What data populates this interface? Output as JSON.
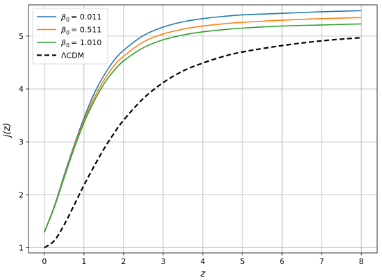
{
  "chart_data": {
    "type": "line",
    "xlabel": "z",
    "ylabel": "j(z)",
    "xlim": [
      -0.4,
      8.4
    ],
    "ylim": [
      0.9,
      5.59
    ],
    "xticks": [
      "0",
      "1",
      "2",
      "3",
      "4",
      "5",
      "6",
      "7",
      "8"
    ],
    "yticks": [
      "1",
      "2",
      "3",
      "4",
      "5"
    ],
    "grid": true,
    "legend_position": "top-left",
    "series": [
      {
        "name": "β0 = 0.011",
        "legend_symbol": "β",
        "legend_sub": "0",
        "legend_value": "= 0.011",
        "color": "#1f77b4",
        "dash": "solid",
        "x": [
          0,
          0.25,
          0.5,
          0.75,
          1.0,
          1.25,
          1.5,
          1.75,
          2.0,
          2.5,
          3.0,
          3.5,
          4.0,
          4.5,
          5.0,
          6.0,
          7.0,
          8.0
        ],
        "y": [
          1.29,
          1.78,
          2.37,
          2.93,
          3.45,
          3.9,
          4.25,
          4.53,
          4.73,
          5.01,
          5.17,
          5.27,
          5.33,
          5.37,
          5.4,
          5.43,
          5.46,
          5.48
        ]
      },
      {
        "name": "β0 = 0.511",
        "legend_symbol": "β",
        "legend_sub": "0",
        "legend_value": "= 0.511",
        "color": "#ff7f0e",
        "dash": "solid",
        "x": [
          0,
          0.25,
          0.5,
          0.75,
          1.0,
          1.25,
          1.5,
          1.75,
          2.0,
          2.5,
          3.0,
          3.5,
          4.0,
          4.5,
          5.0,
          6.0,
          7.0,
          8.0
        ],
        "y": [
          1.29,
          1.77,
          2.34,
          2.9,
          3.4,
          3.82,
          4.16,
          4.43,
          4.62,
          4.89,
          5.04,
          5.13,
          5.19,
          5.23,
          5.26,
          5.3,
          5.33,
          5.35
        ]
      },
      {
        "name": "β0 = 1.010",
        "legend_symbol": "β",
        "legend_sub": "0",
        "legend_value": "= 1.010",
        "color": "#2ca02c",
        "dash": "solid",
        "x": [
          0,
          0.25,
          0.5,
          0.75,
          1.0,
          1.25,
          1.5,
          1.75,
          2.0,
          2.5,
          3.0,
          3.5,
          4.0,
          4.5,
          5.0,
          6.0,
          7.0,
          8.0
        ],
        "y": [
          1.29,
          1.76,
          2.32,
          2.87,
          3.36,
          3.76,
          4.09,
          4.34,
          4.53,
          4.78,
          4.93,
          5.02,
          5.08,
          5.12,
          5.15,
          5.19,
          5.21,
          5.23
        ]
      },
      {
        "name": "ΛCDM",
        "legend_value": "ΛCDM",
        "color": "#000000",
        "dash": "dashed",
        "x": [
          0,
          0.25,
          0.5,
          0.75,
          1.0,
          1.25,
          1.5,
          1.75,
          2.0,
          2.5,
          3.0,
          3.5,
          4.0,
          4.5,
          5.0,
          6.0,
          7.0,
          8.0
        ],
        "y": [
          1.0,
          1.13,
          1.43,
          1.8,
          2.18,
          2.53,
          2.86,
          3.15,
          3.41,
          3.82,
          4.12,
          4.34,
          4.49,
          4.61,
          4.7,
          4.82,
          4.91,
          4.97
        ]
      }
    ]
  }
}
